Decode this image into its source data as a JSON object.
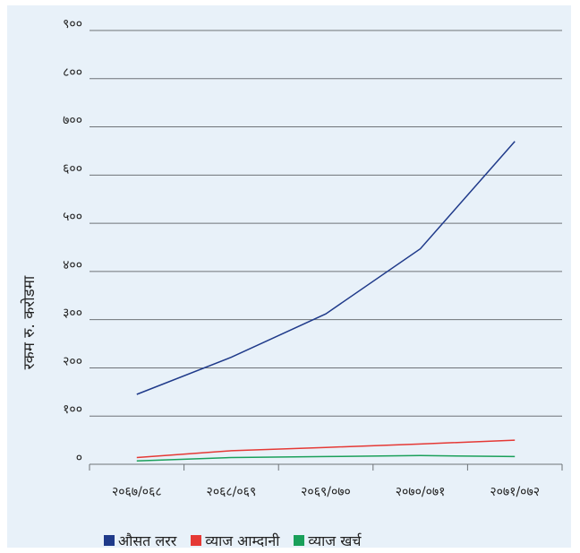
{
  "chart_data": {
    "type": "line",
    "categories": [
      "२०६७/०६८",
      "२०६८/०६९",
      "२०६९/०७०",
      "२०७०/०७१",
      "२०७१/०७२"
    ],
    "ylabel": "रकम रु. करोडमा",
    "ylim": [
      0,
      900
    ],
    "yticks": [
      0,
      100,
      200,
      300,
      400,
      500,
      600,
      700,
      800,
      900
    ],
    "ytick_labels": [
      "०",
      "१००",
      "२००",
      "३००",
      "४००",
      "५००",
      "६००",
      "७००",
      "८००",
      "९००"
    ],
    "grid": true,
    "legend_position": "bottom",
    "series": [
      {
        "name": "औसत लरर",
        "color": "#1f3a8a",
        "values": [
          145,
          222,
          312,
          447,
          670
        ]
      },
      {
        "name": "व्याज आम्दानी",
        "color": "#e53935",
        "values": [
          14,
          28,
          35,
          42,
          50
        ]
      },
      {
        "name": "व्याज खर्च",
        "color": "#1aa05a",
        "values": [
          7,
          14,
          16,
          18,
          16
        ]
      }
    ]
  }
}
